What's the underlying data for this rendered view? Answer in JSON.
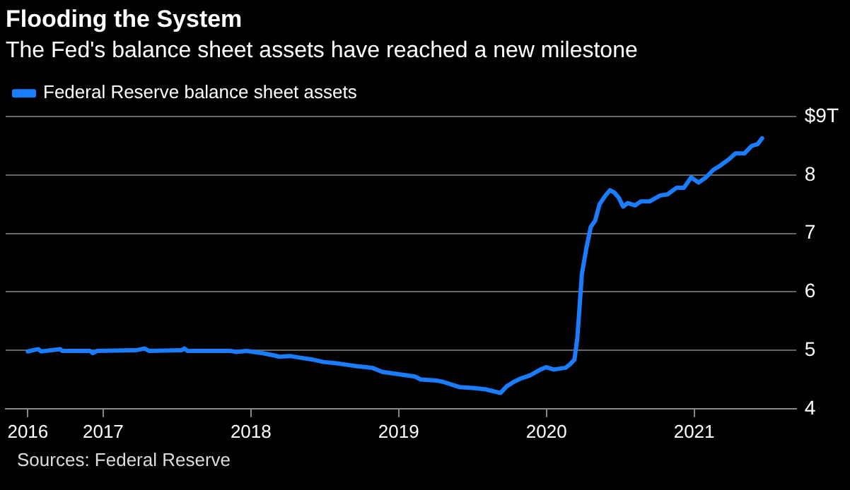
{
  "chart_data": {
    "type": "line",
    "title": "Flooding the System",
    "subtitle": "The Fed's balance sheet assets have reached a new milestone",
    "annotations": [
      "Sources: Federal Reserve"
    ],
    "legend": "top left",
    "grid": "y",
    "marker": "none",
    "line_style": "solid",
    "xlim": [
      2016.34,
      2021.69
    ],
    "xticks": [
      {
        "value": 2016.49,
        "label": "2016"
      },
      {
        "value": 2017,
        "label": "2017"
      },
      {
        "value": 2018,
        "label": "2018"
      },
      {
        "value": 2019,
        "label": "2019"
      },
      {
        "value": 2020,
        "label": "2020"
      },
      {
        "value": 2021,
        "label": "2021"
      }
    ],
    "ylim": [
      4,
      9
    ],
    "yticks": [
      4,
      5,
      6,
      7,
      8,
      {
        "value": 9,
        "label": "$9T"
      }
    ],
    "x": [
      2016.49,
      2016.56,
      2016.58,
      2016.71,
      2016.72,
      2016.91,
      2016.93,
      2016.96,
      2017.22,
      2017.28,
      2017.31,
      2017.53,
      2017.55,
      2017.57,
      2017.86,
      2017.9,
      2017.97,
      2018.08,
      2018.16,
      2018.19,
      2018.27,
      2018.34,
      2018.42,
      2018.49,
      2018.6,
      2018.71,
      2018.82,
      2018.89,
      2019.0,
      2019.11,
      2019.15,
      2019.26,
      2019.3,
      2019.41,
      2019.52,
      2019.59,
      2019.67,
      2019.69,
      2019.73,
      2019.78,
      2019.83,
      2019.89,
      2019.96,
      2020.0,
      2020.05,
      2020.13,
      2020.16,
      2020.19,
      2020.21,
      2020.24,
      2020.27,
      2020.3,
      2020.33,
      2020.36,
      2020.4,
      2020.43,
      2020.46,
      2020.49,
      2020.52,
      2020.55,
      2020.6,
      2020.64,
      2020.7,
      2020.77,
      2020.82,
      2020.88,
      2020.93,
      2020.98,
      2021.03,
      2021.08,
      2021.13,
      2021.17,
      2021.23,
      2021.28,
      2021.34,
      2021.39,
      2021.43,
      2021.46
    ],
    "series": [
      {
        "name": "Federal Reserve balance sheet assets",
        "color": "#1a7cff",
        "values": [
          4.98,
          5.02,
          4.98,
          5.02,
          4.99,
          4.99,
          4.95,
          4.99,
          5.0,
          5.03,
          4.99,
          5.0,
          5.03,
          4.99,
          4.99,
          4.97,
          4.99,
          4.95,
          4.91,
          4.89,
          4.9,
          4.87,
          4.84,
          4.8,
          4.77,
          4.73,
          4.7,
          4.63,
          4.59,
          4.55,
          4.5,
          4.48,
          4.46,
          4.37,
          4.35,
          4.33,
          4.28,
          4.27,
          4.38,
          4.46,
          4.52,
          4.57,
          4.67,
          4.71,
          4.67,
          4.7,
          4.76,
          4.84,
          5.22,
          6.3,
          6.74,
          7.11,
          7.22,
          7.5,
          7.65,
          7.74,
          7.7,
          7.61,
          7.46,
          7.52,
          7.48,
          7.55,
          7.55,
          7.65,
          7.67,
          7.78,
          7.78,
          7.96,
          7.87,
          7.96,
          8.09,
          8.15,
          8.26,
          8.37,
          8.37,
          8.5,
          8.53,
          8.63
        ]
      }
    ]
  }
}
